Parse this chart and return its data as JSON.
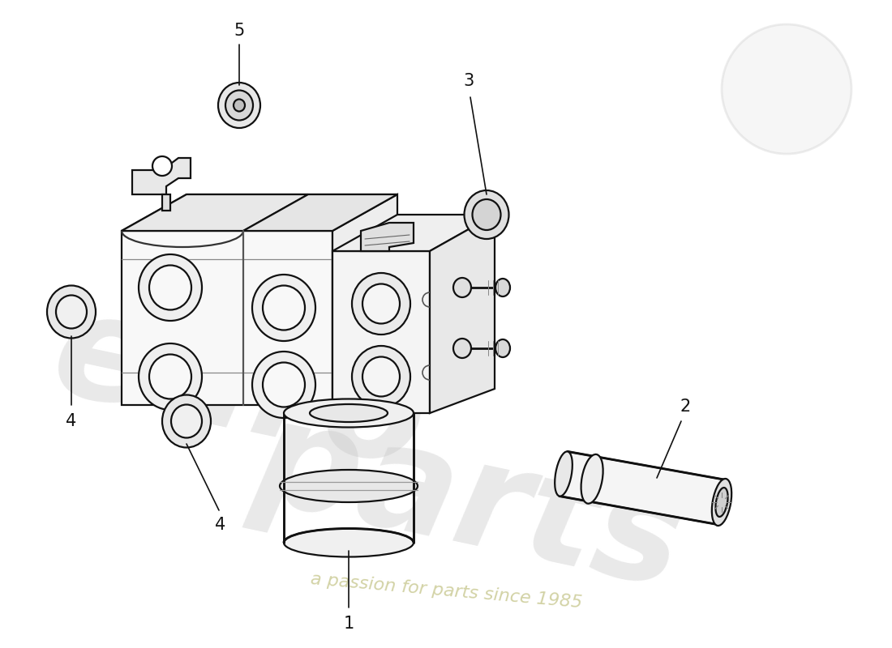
{
  "background_color": "#ffffff",
  "line_color": "#111111",
  "line_width": 1.6,
  "figsize": [
    11.0,
    8.0
  ],
  "dpi": 100,
  "watermark": {
    "euro_color": "#c8c8c8",
    "euro_alpha": 0.4,
    "tagline_color": "#d0d0a0",
    "tagline_alpha": 0.95,
    "tagline_text": "a passion for parts since 1985"
  }
}
